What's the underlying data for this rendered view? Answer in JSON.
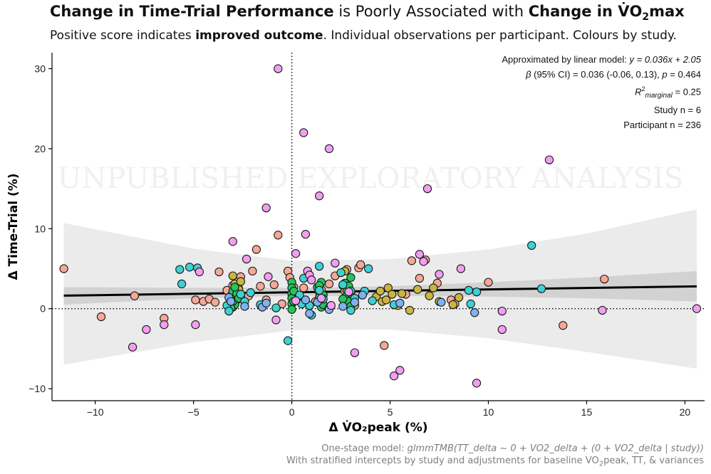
{
  "title_parts": {
    "a": "Change in Time-Trial Performance",
    "b": " is Poorly Associated with ",
    "c": "Change in V̇O",
    "c_sub": "2",
    "d": "max"
  },
  "subtitle_parts": {
    "a": "Positive score indicates ",
    "b": "improved outcome",
    "c": ". Individual observations per participant. Colours by study."
  },
  "annotation": {
    "model_prefix": "Approximated by linear model: ",
    "model_eq": "y = 0.036x + 2.05",
    "beta_prefix": "β",
    "beta_text": " (95% CI) = 0.036 (-0.06, 0.13), ",
    "p_label": "p",
    "p_text": " = 0.464",
    "r2_label": "R",
    "r2_sup": "2",
    "r2_sub": "marginal",
    "r2_text": " = 0.25",
    "study_n": "Study n = 6",
    "participant_n": "Participant n = 236"
  },
  "watermark": "UNPUBLISHED EXPLORATORY ANALYSIS",
  "caption": {
    "line1_prefix": "One-stage model: ",
    "line1_model": "glmmTMB(TT_delta ~ 0 + VO2_delta + (0 + VO2_delta | study))",
    "line2": "With stratified intercepts by study and adjustments for baseline VO",
    "line2_sub": "2",
    "line2_end": "peak, TT, & variances"
  },
  "colors": {
    "study_1": "#f4a896",
    "study_2": "#c9b640",
    "study_3": "#22c55e",
    "study_4": "#3fd0d4",
    "study_5": "#7fb2f0",
    "study_6": "#f39ef0",
    "ci_outer": "#ebebeb",
    "ci_inner": "#d2d2d2",
    "fit_line": "#000000",
    "watermark": "#f0f0f0"
  },
  "chart_data": {
    "type": "scatter",
    "xlabel": "Δ V̇O₂peak (%)",
    "ylabel": "Δ Time-Trial (%)",
    "xlim": [
      -12.2,
      21.0
    ],
    "ylim": [
      -11.5,
      32.0
    ],
    "x_ticks": [
      -10,
      -5,
      0,
      5,
      10,
      15,
      20
    ],
    "y_ticks": [
      -10,
      0,
      10,
      20,
      30
    ],
    "reference_lines": {
      "x": 0,
      "y": 0
    },
    "fit_line": {
      "x": [
        -11.6,
        20.6
      ],
      "y": [
        1.63,
        2.79
      ]
    },
    "ci_outer": {
      "x": [
        -11.6,
        -5,
        0,
        5,
        10,
        15,
        20.6
      ],
      "upper": [
        10.7,
        7.5,
        6.0,
        6.2,
        7.4,
        9.4,
        12.4
      ],
      "lower": [
        -7.0,
        -4.2,
        -2.7,
        -2.6,
        -3.7,
        -5.4,
        -7.5
      ]
    },
    "ci_inner": {
      "x": [
        -11.6,
        -5,
        0,
        5,
        10,
        15,
        20.6
      ],
      "upper": [
        2.7,
        2.6,
        2.6,
        2.8,
        3.3,
        3.9,
        4.7
      ],
      "lower": [
        0.5,
        1.3,
        1.6,
        1.6,
        1.5,
        1.3,
        0.9
      ]
    },
    "series": [
      {
        "points": [
          [
            -11.6,
            5.0
          ],
          [
            -9.7,
            -1.0
          ],
          [
            -8.0,
            1.6
          ],
          [
            -6.5,
            -1.2
          ],
          [
            -4.9,
            1.1
          ],
          [
            -4.5,
            0.9
          ],
          [
            -4.2,
            1.2
          ],
          [
            -3.9,
            0.8
          ],
          [
            -3.7,
            4.6
          ],
          [
            -3.3,
            2.3
          ],
          [
            -3.0,
            2.9
          ],
          [
            -2.7,
            2.5
          ],
          [
            -2.6,
            4.0
          ],
          [
            -2.2,
            1.6
          ],
          [
            -2.0,
            4.7
          ],
          [
            -1.8,
            7.4
          ],
          [
            -1.6,
            2.8
          ],
          [
            -1.3,
            1.1
          ],
          [
            -0.9,
            3.0
          ],
          [
            -0.7,
            9.2
          ],
          [
            -0.5,
            0.6
          ],
          [
            -0.2,
            4.7
          ],
          [
            -0.1,
            3.9
          ],
          [
            0.1,
            2.7
          ],
          [
            0.3,
            1.5
          ],
          [
            0.6,
            2.6
          ],
          [
            1.2,
            0.9
          ],
          [
            1.5,
            2.4
          ],
          [
            1.9,
            3.1
          ],
          [
            2.2,
            4.1
          ],
          [
            2.8,
            4.9
          ],
          [
            3.4,
            5.1
          ],
          [
            3.5,
            5.5
          ],
          [
            4.7,
            -4.6
          ],
          [
            5.2,
            0.5
          ],
          [
            5.8,
            1.8
          ],
          [
            6.1,
            6.0
          ],
          [
            6.5,
            3.8
          ],
          [
            6.8,
            6.1
          ],
          [
            7.4,
            3.2
          ],
          [
            8.1,
            1.1
          ],
          [
            8.3,
            0.6
          ],
          [
            10.0,
            3.3
          ],
          [
            13.8,
            -2.1
          ],
          [
            15.9,
            3.7
          ]
        ]
      },
      {
        "points": [
          [
            -3.0,
            4.1
          ],
          [
            -2.9,
            3.1
          ],
          [
            -2.7,
            2.4
          ],
          [
            -2.6,
            1.8
          ],
          [
            -2.8,
            1.1
          ],
          [
            -2.9,
            0.7
          ],
          [
            -3.0,
            0.2
          ],
          [
            -2.6,
            3.4
          ],
          [
            2.7,
            4.7
          ],
          [
            2.6,
            2.9
          ],
          [
            2.7,
            2.2
          ],
          [
            3.0,
            1.2
          ],
          [
            3.2,
            0.4
          ],
          [
            4.3,
            1.5
          ],
          [
            4.6,
            0.9
          ],
          [
            4.9,
            2.6
          ],
          [
            5.1,
            1.8
          ],
          [
            5.4,
            0.4
          ],
          [
            6.0,
            -0.2
          ],
          [
            6.4,
            2.4
          ],
          [
            7.0,
            1.6
          ],
          [
            7.5,
            0.9
          ],
          [
            8.2,
            0.5
          ],
          [
            8.5,
            1.4
          ],
          [
            4.5,
            2.2
          ],
          [
            4.8,
            1.1
          ],
          [
            5.6,
            1.9
          ],
          [
            7.2,
            2.6
          ]
        ]
      },
      {
        "points": [
          [
            -3.1,
            1.6
          ],
          [
            -3.0,
            2.2
          ],
          [
            -2.9,
            0.5
          ],
          [
            -2.8,
            1.9
          ],
          [
            -3.0,
            0.9
          ],
          [
            -2.7,
            1.3
          ],
          [
            -2.9,
            2.7
          ],
          [
            -3.1,
            0.1
          ],
          [
            0.0,
            3.3
          ],
          [
            0.0,
            2.6
          ],
          [
            0.0,
            1.9
          ],
          [
            0.0,
            1.3
          ],
          [
            0.0,
            0.6
          ],
          [
            0.0,
            -0.1
          ],
          [
            0.1,
            2.2
          ],
          [
            0.1,
            0.9
          ],
          [
            1.3,
            2.7
          ],
          [
            1.4,
            2.1
          ],
          [
            1.4,
            1.4
          ],
          [
            1.3,
            0.8
          ],
          [
            1.5,
            0.2
          ],
          [
            1.5,
            3.3
          ],
          [
            1.6,
            1.7
          ],
          [
            2.7,
            3.2
          ],
          [
            2.8,
            2.3
          ],
          [
            2.8,
            1.6
          ],
          [
            2.9,
            0.9
          ],
          [
            3.0,
            0.3
          ],
          [
            2.9,
            2.8
          ],
          [
            3.0,
            1.9
          ],
          [
            2.6,
            1.2
          ],
          [
            3.0,
            3.9
          ],
          [
            1.4,
            2.9
          ],
          [
            1.6,
            0.5
          ]
        ]
      },
      {
        "points": [
          [
            -5.7,
            4.9
          ],
          [
            -5.2,
            5.2
          ],
          [
            -4.8,
            5.1
          ],
          [
            -5.6,
            3.1
          ],
          [
            -3.3,
            0.4
          ],
          [
            -3.2,
            -0.3
          ],
          [
            -2.6,
            1.8
          ],
          [
            -2.4,
            0.9
          ],
          [
            -2.1,
            2.0
          ],
          [
            -1.6,
            0.5
          ],
          [
            -0.8,
            0.1
          ],
          [
            -0.2,
            -4.0
          ],
          [
            0.4,
            1.7
          ],
          [
            0.6,
            3.8
          ],
          [
            0.9,
            0.4
          ],
          [
            1.0,
            -0.8
          ],
          [
            1.4,
            2.3
          ],
          [
            1.4,
            5.3
          ],
          [
            1.6,
            1.2
          ],
          [
            1.9,
            0.1
          ],
          [
            2.5,
            4.5
          ],
          [
            2.6,
            3.0
          ],
          [
            3.0,
            2.2
          ],
          [
            3.0,
            -0.2
          ],
          [
            3.2,
            1.3
          ],
          [
            3.7,
            2.2
          ],
          [
            3.9,
            5.0
          ],
          [
            4.1,
            1.0
          ],
          [
            5.2,
            0.5
          ],
          [
            9.0,
            2.3
          ],
          [
            9.4,
            2.1
          ],
          [
            9.1,
            0.6
          ],
          [
            12.2,
            7.9
          ],
          [
            12.7,
            2.5
          ],
          [
            0.5,
            0.6
          ]
        ]
      },
      {
        "points": [
          [
            -3.2,
            1.4
          ],
          [
            -3.1,
            0.9
          ],
          [
            -1.5,
            0.2
          ],
          [
            -1.3,
            0.7
          ],
          [
            0.9,
            -0.6
          ],
          [
            1.3,
            0.8
          ],
          [
            1.9,
            -0.1
          ],
          [
            2.6,
            0.3
          ],
          [
            3.2,
            0.8
          ],
          [
            5.5,
            0.7
          ],
          [
            7.6,
            0.8
          ],
          [
            9.3,
            -0.5
          ],
          [
            -2.4,
            0.3
          ],
          [
            0.7,
            1.1
          ],
          [
            3.6,
            1.7
          ]
        ]
      },
      {
        "points": [
          [
            -0.7,
            30.0
          ],
          [
            0.6,
            22.0
          ],
          [
            1.9,
            20.0
          ],
          [
            1.4,
            14.1
          ],
          [
            6.9,
            15.0
          ],
          [
            13.1,
            18.6
          ],
          [
            -1.3,
            12.6
          ],
          [
            -3.0,
            8.4
          ],
          [
            0.7,
            9.3
          ],
          [
            0.2,
            6.9
          ],
          [
            0.8,
            4.7
          ],
          [
            0.9,
            4.2
          ],
          [
            1.0,
            3.6
          ],
          [
            1.5,
            1.3
          ],
          [
            2.0,
            0.4
          ],
          [
            2.2,
            5.7
          ],
          [
            2.9,
            2.1
          ],
          [
            -4.7,
            4.6
          ],
          [
            -4.9,
            -2.0
          ],
          [
            -8.1,
            -4.8
          ],
          [
            -7.4,
            -2.6
          ],
          [
            -6.5,
            -2.0
          ],
          [
            -0.8,
            -1.4
          ],
          [
            3.2,
            -5.5
          ],
          [
            5.2,
            -8.4
          ],
          [
            5.5,
            -7.7
          ],
          [
            9.4,
            -9.3
          ],
          [
            10.7,
            -0.3
          ],
          [
            10.7,
            -2.6
          ],
          [
            15.8,
            -0.2
          ],
          [
            20.6,
            0.0
          ],
          [
            6.5,
            6.8
          ],
          [
            6.7,
            5.9
          ],
          [
            7.5,
            4.3
          ],
          [
            8.6,
            5.0
          ],
          [
            -2.3,
            6.2
          ],
          [
            -1.2,
            4.0
          ],
          [
            0.2,
            1.0
          ]
        ]
      }
    ]
  }
}
